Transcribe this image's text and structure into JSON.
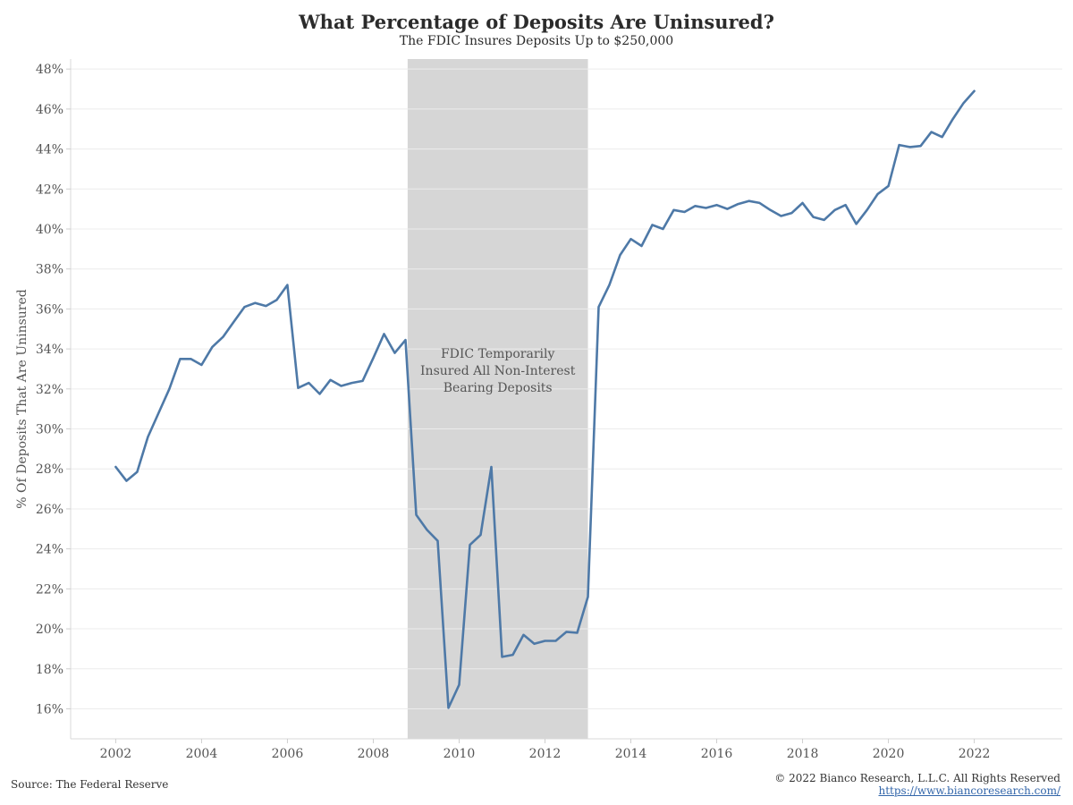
{
  "header": {
    "title": "What Percentage of Deposits Are Uninsured?",
    "subtitle": "The FDIC Insures Deposits Up to $250,000"
  },
  "footer": {
    "source": "Source: The Federal Reserve",
    "copyright": "© 2022 Bianco Research, L.L.C. All Rights Reserved",
    "link": "https://www.biancoresearch.com/"
  },
  "colors": {
    "line": "#4e79a7",
    "shade": "#d6d6d6",
    "grid": "#ececec"
  },
  "chart_data": {
    "type": "line",
    "title": "What Percentage of Deposits Are Uninsured?",
    "subtitle": "The FDIC Insures Deposits Up to $250,000",
    "xlabel": "",
    "ylabel": "% Of Deposits That Are Uninsured",
    "xlim": [
      2000.95,
      2024.05
    ],
    "ylim": [
      14.5,
      48.5
    ],
    "x_ticks": [
      2002,
      2004,
      2006,
      2008,
      2010,
      2012,
      2014,
      2016,
      2018,
      2020,
      2022
    ],
    "x_tick_labels": [
      "2002",
      "2004",
      "2006",
      "2008",
      "2010",
      "2012",
      "2014",
      "2016",
      "2018",
      "2020",
      "2022"
    ],
    "y_ticks": [
      16,
      18,
      20,
      22,
      24,
      26,
      28,
      30,
      32,
      34,
      36,
      38,
      40,
      42,
      44,
      46,
      48
    ],
    "y_tick_labels": [
      "16%",
      "18%",
      "20%",
      "22%",
      "24%",
      "26%",
      "28%",
      "30%",
      "32%",
      "34%",
      "36%",
      "38%",
      "40%",
      "42%",
      "44%",
      "46%",
      "48%"
    ],
    "grid": "horizontal",
    "shaded_region": {
      "x_start": 2008.8,
      "x_end": 2013.0,
      "label": "FDIC Temporarily Insured All Non-Interest Bearing Deposits",
      "label_lines": [
        "FDIC Temporarily",
        "Insured All Non-Interest",
        "Bearing Deposits"
      ]
    },
    "series": [
      {
        "points": [
          [
            2002.0,
            28.1
          ],
          [
            2002.25,
            27.4
          ],
          [
            2002.5,
            27.85
          ],
          [
            2002.75,
            29.6
          ],
          [
            2003.0,
            30.8
          ],
          [
            2003.25,
            32.0
          ],
          [
            2003.5,
            33.5
          ],
          [
            2003.75,
            33.5
          ],
          [
            2004.0,
            33.2
          ],
          [
            2004.25,
            34.1
          ],
          [
            2004.5,
            34.6
          ],
          [
            2004.75,
            35.35
          ],
          [
            2005.0,
            36.1
          ],
          [
            2005.25,
            36.3
          ],
          [
            2005.5,
            36.15
          ],
          [
            2005.75,
            36.45
          ],
          [
            2006.0,
            37.2
          ],
          [
            2006.25,
            32.05
          ],
          [
            2006.5,
            32.3
          ],
          [
            2006.75,
            31.75
          ],
          [
            2007.0,
            32.45
          ],
          [
            2007.25,
            32.15
          ],
          [
            2007.5,
            32.3
          ],
          [
            2007.75,
            32.4
          ],
          [
            2008.0,
            33.55
          ],
          [
            2008.25,
            34.75
          ],
          [
            2008.5,
            33.8
          ],
          [
            2008.75,
            34.45
          ],
          [
            2009.0,
            25.7
          ],
          [
            2009.25,
            24.95
          ],
          [
            2009.5,
            24.4
          ],
          [
            2009.75,
            16.05
          ],
          [
            2010.0,
            17.2
          ],
          [
            2010.25,
            24.2
          ],
          [
            2010.5,
            24.7
          ],
          [
            2010.75,
            28.1
          ],
          [
            2011.0,
            18.6
          ],
          [
            2011.25,
            18.7
          ],
          [
            2011.5,
            19.7
          ],
          [
            2011.75,
            19.25
          ],
          [
            2012.0,
            19.4
          ],
          [
            2012.25,
            19.4
          ],
          [
            2012.5,
            19.85
          ],
          [
            2012.75,
            19.8
          ],
          [
            2013.0,
            21.6
          ],
          [
            2013.25,
            36.1
          ],
          [
            2013.5,
            37.2
          ],
          [
            2013.75,
            38.7
          ],
          [
            2014.0,
            39.5
          ],
          [
            2014.25,
            39.15
          ],
          [
            2014.5,
            40.2
          ],
          [
            2014.75,
            40.0
          ],
          [
            2015.0,
            40.95
          ],
          [
            2015.25,
            40.85
          ],
          [
            2015.5,
            41.15
          ],
          [
            2015.75,
            41.05
          ],
          [
            2016.0,
            41.2
          ],
          [
            2016.25,
            41.0
          ],
          [
            2016.5,
            41.25
          ],
          [
            2016.75,
            41.4
          ],
          [
            2017.0,
            41.3
          ],
          [
            2017.25,
            40.95
          ],
          [
            2017.5,
            40.65
          ],
          [
            2017.75,
            40.8
          ],
          [
            2018.0,
            41.3
          ],
          [
            2018.25,
            40.6
          ],
          [
            2018.5,
            40.45
          ],
          [
            2018.75,
            40.95
          ],
          [
            2019.0,
            41.2
          ],
          [
            2019.25,
            40.25
          ],
          [
            2019.5,
            40.95
          ],
          [
            2019.75,
            41.75
          ],
          [
            2020.0,
            42.15
          ],
          [
            2020.25,
            44.2
          ],
          [
            2020.5,
            44.1
          ],
          [
            2020.75,
            44.15
          ],
          [
            2021.0,
            44.85
          ],
          [
            2021.25,
            44.6
          ],
          [
            2021.5,
            45.5
          ],
          [
            2021.75,
            46.3
          ],
          [
            2022.0,
            46.9
          ]
        ]
      }
    ]
  }
}
